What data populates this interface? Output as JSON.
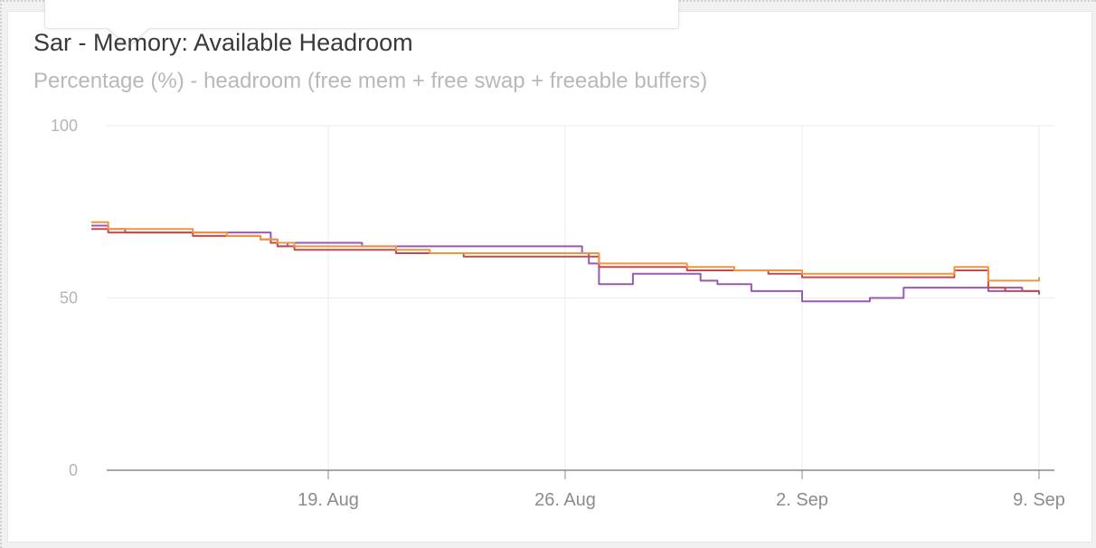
{
  "chart_data": {
    "type": "line",
    "title": "Sar - Memory: Available Headroom",
    "subtitle": "Percentage (%) - headroom (free mem + free swap + freeable buffers)",
    "ylim": [
      0,
      100
    ],
    "y_ticks": [
      0,
      50,
      100
    ],
    "x_ticks": [
      "19. Aug",
      "26. Aug",
      "2. Sep",
      "9. Sep"
    ],
    "grid": true,
    "colors": [
      "#9b59b6",
      "#c44b4b",
      "#f0953f"
    ],
    "series": [
      {
        "color": "#9b59b6",
        "x": [
          12.0,
          12.5,
          13.0,
          14.0,
          15.0,
          16.0,
          17.0,
          17.3,
          17.5,
          17.8,
          18.0,
          19.0,
          20.0,
          21.0,
          21.5,
          22.0,
          23.0,
          24.0,
          25.0,
          26.0,
          26.4,
          26.5,
          26.7,
          27.0,
          27.5,
          28.0,
          29.0,
          29.6,
          30.0,
          30.5,
          31.0,
          31.5,
          32.0,
          33.0,
          33.5,
          34.0,
          35.0,
          36.0,
          37.0,
          38.0,
          38.5,
          39.0,
          39.5,
          40.0
        ],
        "y": [
          71,
          70,
          69,
          69,
          69,
          69,
          69,
          67,
          65,
          66,
          66,
          66,
          65,
          65,
          65,
          65,
          65,
          65,
          65,
          65,
          65,
          63,
          60,
          54,
          54,
          57,
          57,
          57,
          55,
          54,
          54,
          52,
          52,
          49,
          49,
          49,
          50,
          53,
          53,
          53,
          52,
          53,
          52,
          51
        ]
      },
      {
        "color": "#c44b4b",
        "x": [
          12.0,
          12.5,
          13.0,
          14.0,
          15.0,
          16.0,
          17.0,
          17.3,
          17.5,
          18.0,
          19.0,
          20.0,
          21.0,
          22.0,
          23.0,
          24.0,
          25.0,
          26.0,
          26.5,
          27.0,
          28.0,
          29.0,
          29.6,
          30.0,
          31.0,
          32.0,
          33.0,
          34.0,
          35.0,
          36.0,
          37.0,
          37.5,
          38.0,
          38.5,
          39.0,
          39.5,
          40.0
        ],
        "y": [
          70,
          69,
          69,
          69,
          68,
          68,
          67,
          66,
          65,
          64,
          64,
          64,
          63,
          63,
          62,
          62,
          62,
          62,
          62,
          59,
          59,
          59,
          58,
          58,
          58,
          57,
          56,
          56,
          56,
          56,
          56,
          58,
          58,
          53,
          52,
          52,
          52
        ]
      },
      {
        "color": "#f0953f",
        "x": [
          12.0,
          12.5,
          13.0,
          14.0,
          15.0,
          16.0,
          17.0,
          17.5,
          18.0,
          19.0,
          20.0,
          21.0,
          22.0,
          23.0,
          24.0,
          25.0,
          26.0,
          26.5,
          27.0,
          28.0,
          29.0,
          29.6,
          30.0,
          31.0,
          32.0,
          33.0,
          34.0,
          35.0,
          36.0,
          37.0,
          37.5,
          38.0,
          38.5,
          39.0,
          39.5,
          40.0
        ],
        "y": [
          72,
          70,
          70,
          70,
          69,
          68,
          67,
          66,
          65,
          65,
          65,
          64,
          63,
          63,
          63,
          63,
          63,
          63,
          60,
          60,
          60,
          59,
          59,
          58,
          58,
          57,
          57,
          57,
          57,
          57,
          59,
          59,
          55,
          55,
          55,
          56
        ]
      }
    ]
  }
}
